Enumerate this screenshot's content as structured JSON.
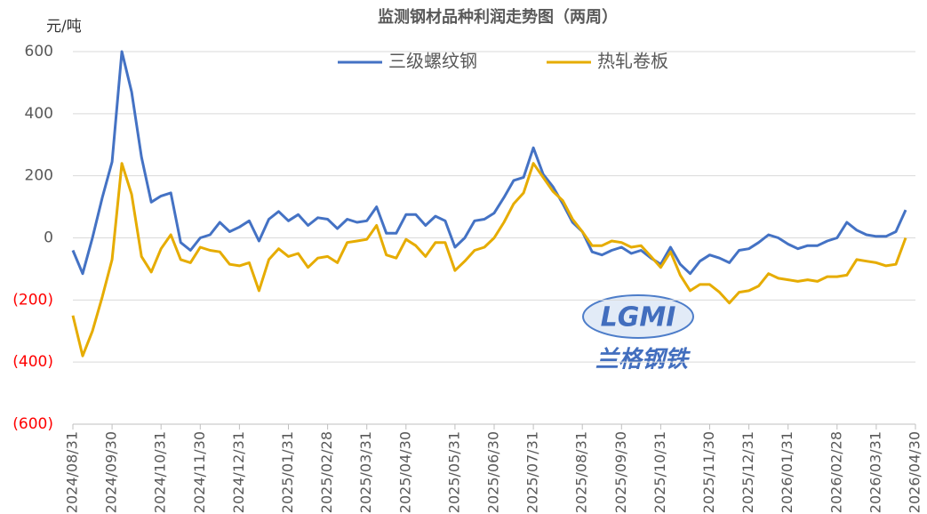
{
  "chart_data": {
    "type": "line",
    "title": "监测钢材品种利润走势图（两周）",
    "y_label": "元/吨",
    "watermark": {
      "logo": "LGMI",
      "name": "兰格钢铁"
    },
    "categories": [
      "2024/08/31",
      null,
      null,
      null,
      "2024/09/30",
      null,
      null,
      null,
      null,
      "2024/10/31",
      null,
      null,
      null,
      "2024/11/30",
      null,
      null,
      null,
      "2024/12/31",
      null,
      null,
      null,
      null,
      "2025/01/31",
      null,
      null,
      null,
      "2025/02/28",
      null,
      null,
      null,
      "2025/03/31",
      null,
      null,
      null,
      "2025/04/30",
      null,
      null,
      null,
      null,
      "2025/05/31",
      null,
      null,
      null,
      "2025/06/30",
      null,
      null,
      null,
      "2025/07/31",
      null,
      null,
      null,
      null,
      "2025/08/31",
      null,
      null,
      null,
      "2025/09/30",
      null,
      null,
      null,
      "2025/10/31",
      null,
      null,
      null,
      null,
      "2025/11/30",
      null,
      null,
      null,
      "2025/12/31",
      null,
      null,
      null,
      "2026/01/31",
      null,
      null,
      null,
      null,
      "2026/02/28",
      null,
      null,
      null,
      "2026/03/31",
      null,
      null,
      null,
      "2026/04/30"
    ],
    "series": [
      {
        "name": "三级螺纹钢",
        "color": "#4472c4",
        "values": [
          -40,
          -115,
          0,
          130,
          245,
          600,
          470,
          260,
          115,
          135,
          145,
          -15,
          -40,
          0,
          10,
          50,
          20,
          35,
          55,
          -10,
          60,
          85,
          55,
          75,
          40,
          65,
          60,
          30,
          60,
          50,
          55,
          100,
          15,
          15,
          75,
          75,
          40,
          70,
          55,
          -30,
          0,
          55,
          60,
          80,
          130,
          185,
          195,
          290,
          205,
          165,
          110,
          50,
          20,
          -45,
          -55,
          -40,
          -30,
          -50,
          -40,
          -65,
          -85,
          -30,
          -85,
          -115,
          -75,
          -55,
          -65,
          -80,
          -40,
          -35,
          -15,
          10,
          0,
          -20,
          -35,
          -25,
          -25,
          -10,
          0,
          50,
          25,
          10,
          5,
          5,
          20,
          90,
          null
        ]
      },
      {
        "name": "热轧卷板",
        "color": "#e6ac00",
        "values": [
          -250,
          -380,
          -300,
          -190,
          -70,
          240,
          140,
          -60,
          -110,
          -35,
          10,
          -70,
          -80,
          -30,
          -40,
          -45,
          -85,
          -90,
          -80,
          -170,
          -70,
          -35,
          -60,
          -50,
          -95,
          -65,
          -60,
          -80,
          -15,
          -10,
          -5,
          40,
          -55,
          -65,
          -5,
          -25,
          -60,
          -15,
          -15,
          -105,
          -75,
          -40,
          -30,
          0,
          50,
          110,
          145,
          240,
          195,
          150,
          120,
          60,
          20,
          -25,
          -25,
          -10,
          -15,
          -30,
          -25,
          -60,
          -95,
          -45,
          -120,
          -170,
          -150,
          -150,
          -175,
          -210,
          -175,
          -170,
          -155,
          -115,
          -130,
          -135,
          -140,
          -135,
          -140,
          -125,
          -125,
          -120,
          -70,
          -75,
          -80,
          -90,
          -85,
          0,
          null
        ]
      }
    ],
    "ylim": [
      -600,
      600
    ],
    "yticks": [
      600,
      400,
      200,
      0,
      {
        "value": -200,
        "label": "(200)"
      },
      {
        "value": -400,
        "label": "(400)"
      },
      {
        "value": -600,
        "label": "(600)"
      }
    ],
    "negative_tick_color": "#ff0000",
    "grid": true,
    "legend": "top"
  }
}
